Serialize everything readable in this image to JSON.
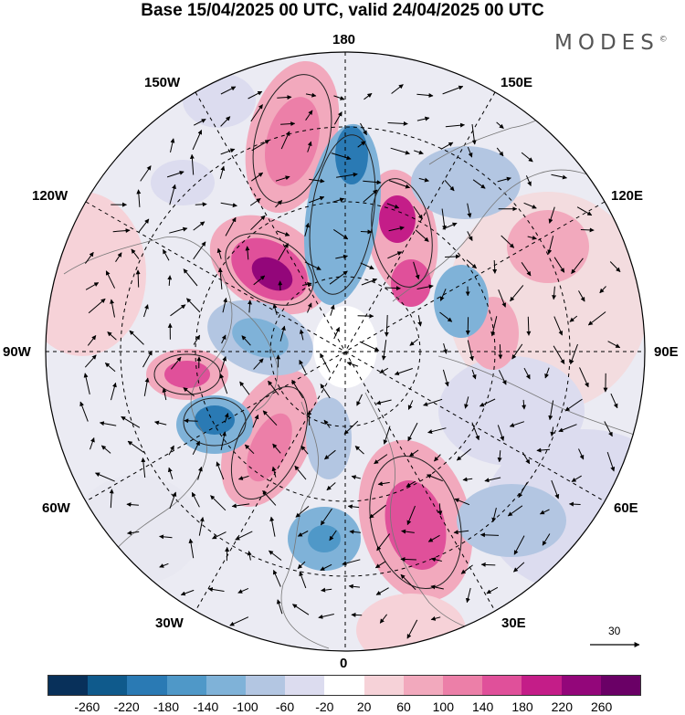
{
  "title": "Base 15/04/2025 00 UTC, valid 24/04/2025 00 UTC",
  "brand": "MODES",
  "brand_mark": "©",
  "longitude_labels": {
    "top": "180",
    "top_right": "150E",
    "right_upper": "120E",
    "right": "90E",
    "right_lower": "60E",
    "bottom_right": "30E",
    "bottom": "0",
    "bottom_left": "30W",
    "left_lower": "60W",
    "left": "90W",
    "left_upper": "120W",
    "top_left": "150W"
  },
  "reference_vector": "30",
  "colorbar": {
    "colors": [
      "#08305a",
      "#0f5a8c",
      "#2a7ab4",
      "#4f98c8",
      "#7fb2d8",
      "#b3c6e2",
      "#dcdcef",
      "#ffffff",
      "#f6d2d8",
      "#f2a9bd",
      "#ec7fa8",
      "#e0509a",
      "#c41d88",
      "#93067a",
      "#6a0066"
    ],
    "ticks": [
      "-260",
      "-220",
      "-180",
      "-140",
      "-100",
      "-60",
      "-20",
      "20",
      "60",
      "100",
      "140",
      "180",
      "220",
      "260"
    ]
  }
}
